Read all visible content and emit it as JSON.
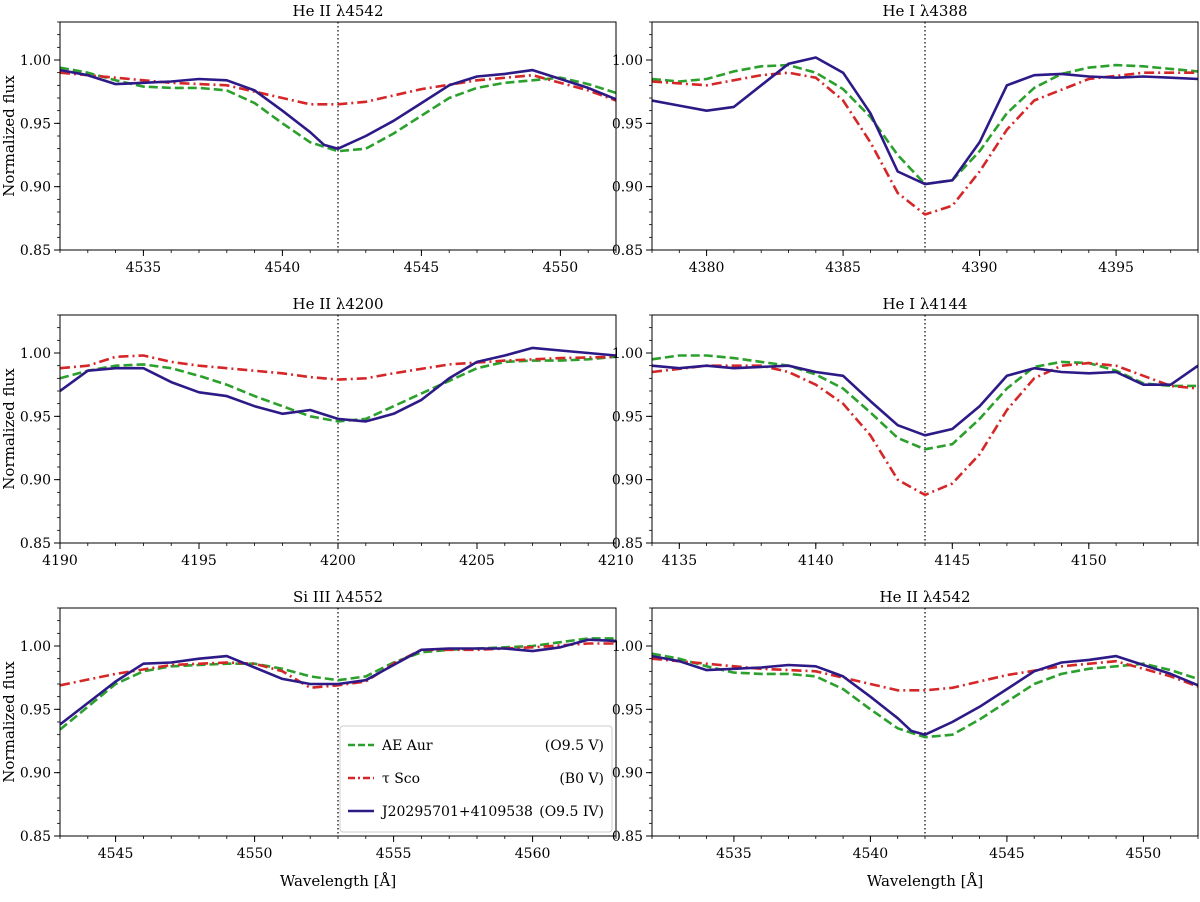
{
  "figure": {
    "ylabel": "Normalized flux",
    "xlabel": "Wavelength [Å]"
  },
  "legend": {
    "entries": [
      {
        "name": "AE Aur",
        "type": "(O9.5 V)",
        "color": "#2ca02c",
        "style": "dashed"
      },
      {
        "name": "τ Sco",
        "type": "(B0 V)",
        "color": "#d62728",
        "style": "dashdot"
      },
      {
        "name": "J20295701+4109538",
        "type": "(O9.5 IV)",
        "color": "#2e1a87",
        "style": "solid"
      }
    ]
  },
  "chart_data": [
    {
      "type": "line",
      "title": "He II λ4542",
      "xlim": [
        4532,
        4552
      ],
      "ylim": [
        0.85,
        1.03
      ],
      "x_ticks": [
        4535,
        4540,
        4545,
        4550
      ],
      "y_ticks": [
        0.85,
        0.9,
        0.95,
        1.0
      ],
      "vline": 4542,
      "series": [
        {
          "name": "AE Aur",
          "x": [
            4532,
            4533,
            4534,
            4535,
            4536,
            4537,
            4538,
            4539,
            4540,
            4541,
            4542,
            4543,
            4544,
            4545,
            4546,
            4547,
            4548,
            4549,
            4550,
            4551,
            4552
          ],
          "y": [
            0.994,
            0.99,
            0.984,
            0.979,
            0.978,
            0.978,
            0.976,
            0.966,
            0.95,
            0.935,
            0.928,
            0.93,
            0.942,
            0.956,
            0.97,
            0.978,
            0.982,
            0.984,
            0.986,
            0.981,
            0.974
          ]
        },
        {
          "name": "τ Sco",
          "x": [
            4532,
            4534,
            4536,
            4538,
            4540,
            4541,
            4542,
            4543,
            4545,
            4547,
            4549,
            4551,
            4552
          ],
          "y": [
            0.99,
            0.986,
            0.982,
            0.98,
            0.97,
            0.965,
            0.965,
            0.967,
            0.977,
            0.984,
            0.988,
            0.976,
            0.968
          ]
        },
        {
          "name": "J20295701+4109538",
          "x": [
            4532,
            4533,
            4534,
            4535,
            4536,
            4537,
            4538,
            4539,
            4540,
            4541,
            4541.5,
            4542,
            4543,
            4544,
            4545,
            4546,
            4547,
            4548,
            4549,
            4550,
            4551,
            4552
          ],
          "y": [
            0.992,
            0.988,
            0.981,
            0.982,
            0.983,
            0.985,
            0.984,
            0.976,
            0.96,
            0.943,
            0.933,
            0.93,
            0.94,
            0.952,
            0.966,
            0.98,
            0.987,
            0.989,
            0.992,
            0.985,
            0.978,
            0.969
          ]
        }
      ]
    },
    {
      "type": "line",
      "title": "He I λ4388",
      "xlim": [
        4378,
        4398
      ],
      "ylim": [
        0.85,
        1.03
      ],
      "x_ticks": [
        4380,
        4385,
        4390,
        4395
      ],
      "y_ticks": [
        0.85,
        0.9,
        0.95,
        1.0
      ],
      "vline": 4388,
      "series": [
        {
          "name": "AE Aur",
          "x": [
            4378,
            4379,
            4380,
            4381,
            4382,
            4383,
            4384,
            4385,
            4386,
            4387,
            4388,
            4389,
            4390,
            4391,
            4392,
            4393,
            4394,
            4395,
            4396,
            4397,
            4398
          ],
          "y": [
            0.985,
            0.983,
            0.985,
            0.991,
            0.995,
            0.996,
            0.99,
            0.977,
            0.955,
            0.925,
            0.902,
            0.905,
            0.928,
            0.958,
            0.978,
            0.989,
            0.994,
            0.996,
            0.995,
            0.993,
            0.991
          ]
        },
        {
          "name": "τ Sco",
          "x": [
            4378,
            4380,
            4382,
            4383,
            4384,
            4385,
            4386,
            4387,
            4388,
            4389,
            4390,
            4391,
            4392,
            4394,
            4396,
            4398
          ],
          "y": [
            0.983,
            0.98,
            0.988,
            0.99,
            0.986,
            0.968,
            0.935,
            0.895,
            0.878,
            0.885,
            0.912,
            0.945,
            0.968,
            0.985,
            0.99,
            0.99
          ]
        },
        {
          "name": "J20295701+4109538",
          "x": [
            4378,
            4379,
            4380,
            4381,
            4382,
            4383,
            4384,
            4385,
            4386,
            4387,
            4388,
            4389,
            4390,
            4391,
            4392,
            4393,
            4394,
            4395,
            4396,
            4397,
            4398
          ],
          "y": [
            0.968,
            0.964,
            0.96,
            0.963,
            0.98,
            0.997,
            1.002,
            0.99,
            0.958,
            0.912,
            0.902,
            0.905,
            0.935,
            0.98,
            0.988,
            0.989,
            0.987,
            0.986,
            0.987,
            0.986,
            0.985
          ]
        }
      ]
    },
    {
      "type": "line",
      "title": "He II λ4200",
      "xlim": [
        4190,
        4210
      ],
      "ylim": [
        0.85,
        1.03
      ],
      "x_ticks": [
        4190,
        4195,
        4200,
        4205,
        4210
      ],
      "y_ticks": [
        0.85,
        0.9,
        0.95,
        1.0
      ],
      "vline": 4200,
      "series": [
        {
          "name": "AE Aur",
          "x": [
            4190,
            4191,
            4192,
            4193,
            4194,
            4195,
            4196,
            4197,
            4198,
            4199,
            4200,
            4201,
            4202,
            4203,
            4204,
            4205,
            4206,
            4207,
            4208,
            4209,
            4210
          ],
          "y": [
            0.98,
            0.986,
            0.99,
            0.991,
            0.988,
            0.982,
            0.975,
            0.966,
            0.958,
            0.95,
            0.946,
            0.948,
            0.958,
            0.968,
            0.978,
            0.988,
            0.993,
            0.994,
            0.994,
            0.995,
            0.997
          ]
        },
        {
          "name": "τ Sco",
          "x": [
            4190,
            4191,
            4192,
            4193,
            4194,
            4195,
            4196,
            4198,
            4199,
            4200,
            4201,
            4202,
            4204,
            4206,
            4208,
            4210
          ],
          "y": [
            0.988,
            0.99,
            0.997,
            0.998,
            0.993,
            0.99,
            0.988,
            0.984,
            0.981,
            0.979,
            0.98,
            0.984,
            0.991,
            0.994,
            0.996,
            0.997
          ]
        },
        {
          "name": "J20295701+4109538",
          "x": [
            4190,
            4191,
            4192,
            4193,
            4194,
            4195,
            4196,
            4197,
            4198,
            4199,
            4200,
            4201,
            4202,
            4203,
            4204,
            4205,
            4206,
            4207,
            4208,
            4209,
            4210
          ],
          "y": [
            0.97,
            0.986,
            0.988,
            0.988,
            0.977,
            0.969,
            0.966,
            0.958,
            0.952,
            0.955,
            0.948,
            0.946,
            0.952,
            0.963,
            0.98,
            0.993,
            0.998,
            1.004,
            1.002,
            1.0,
            0.998
          ]
        }
      ]
    },
    {
      "type": "line",
      "title": "He I λ4144",
      "xlim": [
        4134,
        4154
      ],
      "ylim": [
        0.85,
        1.03
      ],
      "x_ticks": [
        4135,
        4140,
        4145,
        4150
      ],
      "y_ticks": [
        0.85,
        0.9,
        0.95,
        1.0
      ],
      "vline": 4144,
      "series": [
        {
          "name": "AE Aur",
          "x": [
            4134,
            4135,
            4136,
            4137,
            4138,
            4139,
            4140,
            4141,
            4142,
            4143,
            4144,
            4145,
            4146,
            4147,
            4148,
            4149,
            4150,
            4151,
            4152,
            4153,
            4154
          ],
          "y": [
            0.995,
            0.998,
            0.998,
            0.996,
            0.993,
            0.99,
            0.983,
            0.972,
            0.953,
            0.933,
            0.924,
            0.928,
            0.948,
            0.972,
            0.989,
            0.993,
            0.992,
            0.986,
            0.976,
            0.974,
            0.974
          ]
        },
        {
          "name": "τ Sco",
          "x": [
            4134,
            4136,
            4138,
            4139,
            4140,
            4141,
            4142,
            4143,
            4144,
            4145,
            4146,
            4147,
            4148,
            4149,
            4150,
            4151,
            4152,
            4153,
            4154
          ],
          "y": [
            0.985,
            0.99,
            0.99,
            0.985,
            0.975,
            0.96,
            0.935,
            0.9,
            0.888,
            0.897,
            0.92,
            0.955,
            0.98,
            0.99,
            0.992,
            0.99,
            0.982,
            0.974,
            0.972
          ]
        },
        {
          "name": "J20295701+4109538",
          "x": [
            4134,
            4135,
            4136,
            4137,
            4138,
            4139,
            4140,
            4141,
            4142,
            4143,
            4144,
            4145,
            4146,
            4147,
            4148,
            4149,
            4150,
            4151,
            4152,
            4153,
            4154
          ],
          "y": [
            0.99,
            0.988,
            0.99,
            0.988,
            0.989,
            0.99,
            0.985,
            0.982,
            0.962,
            0.943,
            0.935,
            0.94,
            0.958,
            0.982,
            0.988,
            0.985,
            0.984,
            0.985,
            0.975,
            0.975,
            0.99
          ]
        }
      ]
    },
    {
      "type": "line",
      "title": "Si III λ4552",
      "xlim": [
        4543,
        4563
      ],
      "ylim": [
        0.85,
        1.03
      ],
      "x_ticks": [
        4545,
        4550,
        4555,
        4560
      ],
      "y_ticks": [
        0.85,
        0.9,
        0.95,
        1.0
      ],
      "vline": 4553,
      "series": [
        {
          "name": "AE Aur",
          "x": [
            4543,
            4544,
            4545,
            4546,
            4547,
            4548,
            4549,
            4550,
            4551,
            4552,
            4553,
            4554,
            4555,
            4556,
            4557,
            4558,
            4559,
            4560,
            4561,
            4562,
            4563
          ],
          "y": [
            0.934,
            0.952,
            0.97,
            0.98,
            0.984,
            0.985,
            0.986,
            0.986,
            0.982,
            0.976,
            0.973,
            0.976,
            0.987,
            0.995,
            0.997,
            0.998,
            0.999,
            1.0,
            1.003,
            1.006,
            1.006
          ]
        },
        {
          "name": "τ Sco",
          "x": [
            4543,
            4545,
            4547,
            4549,
            4550,
            4551,
            4552,
            4553,
            4554,
            4555,
            4556,
            4558,
            4560,
            4562,
            4563
          ],
          "y": [
            0.969,
            0.978,
            0.985,
            0.987,
            0.986,
            0.98,
            0.967,
            0.969,
            0.972,
            0.986,
            0.997,
            0.997,
            0.999,
            1.002,
            1.002
          ]
        },
        {
          "name": "J20295701+4109538",
          "x": [
            4543,
            4544,
            4545,
            4546,
            4547,
            4548,
            4549,
            4550,
            4551,
            4552,
            4553,
            4554,
            4555,
            4556,
            4557,
            4558,
            4559,
            4560,
            4561,
            4562,
            4563
          ],
          "y": [
            0.938,
            0.955,
            0.972,
            0.986,
            0.987,
            0.99,
            0.992,
            0.983,
            0.974,
            0.97,
            0.97,
            0.973,
            0.985,
            0.997,
            0.998,
            0.998,
            0.998,
            0.996,
            0.999,
            1.005,
            1.004
          ]
        }
      ]
    },
    {
      "type": "line",
      "title": "He II λ4542",
      "xlim": [
        4532,
        4552
      ],
      "ylim": [
        0.85,
        1.03
      ],
      "x_ticks": [
        4535,
        4540,
        4545,
        4550
      ],
      "y_ticks": [
        0.85,
        0.9,
        0.95,
        1.0
      ],
      "vline": 4542,
      "series": [
        {
          "name": "AE Aur",
          "x": [
            4532,
            4533,
            4534,
            4535,
            4536,
            4537,
            4538,
            4539,
            4540,
            4541,
            4542,
            4543,
            4544,
            4545,
            4546,
            4547,
            4548,
            4549,
            4550,
            4551,
            4552
          ],
          "y": [
            0.994,
            0.99,
            0.984,
            0.979,
            0.978,
            0.978,
            0.976,
            0.966,
            0.95,
            0.935,
            0.928,
            0.93,
            0.942,
            0.956,
            0.97,
            0.978,
            0.982,
            0.984,
            0.986,
            0.981,
            0.974
          ]
        },
        {
          "name": "τ Sco",
          "x": [
            4532,
            4534,
            4536,
            4538,
            4540,
            4541,
            4542,
            4543,
            4545,
            4547,
            4549,
            4551,
            4552
          ],
          "y": [
            0.99,
            0.986,
            0.982,
            0.98,
            0.97,
            0.965,
            0.965,
            0.967,
            0.977,
            0.984,
            0.988,
            0.976,
            0.968
          ]
        },
        {
          "name": "J20295701+4109538",
          "x": [
            4532,
            4533,
            4534,
            4535,
            4536,
            4537,
            4538,
            4539,
            4540,
            4541,
            4541.5,
            4542,
            4543,
            4544,
            4545,
            4546,
            4547,
            4548,
            4549,
            4550,
            4551,
            4552
          ],
          "y": [
            0.992,
            0.988,
            0.981,
            0.982,
            0.983,
            0.985,
            0.984,
            0.976,
            0.96,
            0.943,
            0.933,
            0.93,
            0.94,
            0.952,
            0.966,
            0.98,
            0.987,
            0.989,
            0.992,
            0.985,
            0.978,
            0.969
          ]
        }
      ]
    }
  ]
}
